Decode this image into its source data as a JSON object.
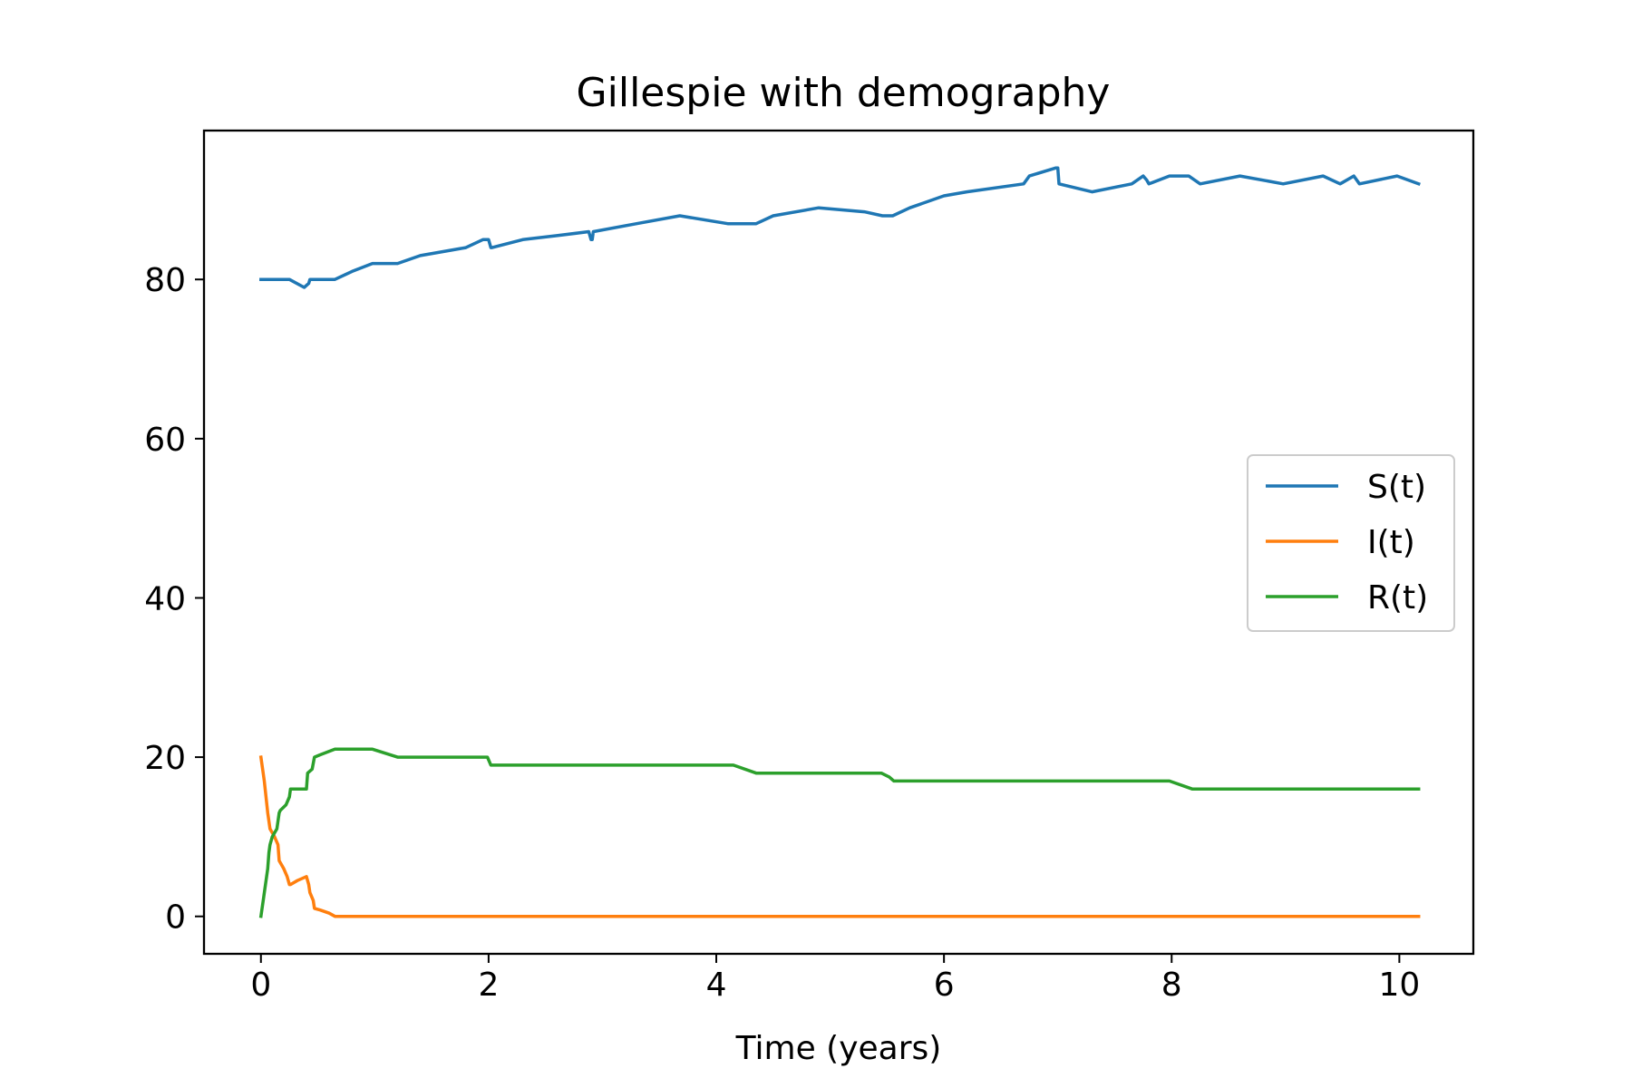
{
  "chart_data": {
    "type": "line",
    "title": "Gillespie with demography",
    "xlabel": "Time (years)",
    "ylabel": "",
    "xlim": [
      -0.5,
      10.65
    ],
    "ylim": [
      -4.7,
      98.7
    ],
    "xticks": [
      0,
      2,
      4,
      6,
      8,
      10
    ],
    "yticks": [
      0,
      20,
      40,
      60,
      80
    ],
    "grid": false,
    "legend_position": "center-right",
    "series": [
      {
        "name": "S(t)",
        "color": "#1f77b4",
        "x": [
          0,
          0.25,
          0.38,
          0.42,
          0.43,
          0.65,
          0.8,
          0.98,
          1.2,
          1.4,
          1.6,
          1.8,
          1.95,
          2.0,
          2.02,
          2.03,
          2.3,
          2.6,
          2.88,
          2.9,
          2.91,
          2.92,
          3.3,
          3.68,
          4.1,
          4.35,
          4.5,
          4.9,
          5.3,
          5.46,
          5.55,
          5.7,
          6.0,
          6.2,
          6.7,
          6.75,
          6.98,
          7.0,
          7.01,
          7.3,
          7.65,
          7.75,
          7.78,
          7.8,
          7.98,
          8.15,
          8.25,
          8.6,
          8.98,
          9.33,
          9.48,
          9.6,
          9.65,
          9.98,
          10.17
        ],
        "y": [
          80,
          80,
          79,
          79.5,
          80,
          80,
          81,
          82,
          82,
          83,
          83.5,
          84,
          85,
          85,
          84,
          84,
          85,
          85.5,
          86,
          85,
          85,
          86,
          87,
          88,
          87,
          87,
          88,
          89,
          88.5,
          88,
          88,
          89,
          90.5,
          91,
          92,
          93,
          94,
          94,
          92,
          91,
          92,
          93,
          92.5,
          92,
          93,
          93,
          92,
          93,
          92,
          93,
          92,
          93,
          92,
          93,
          92
        ]
      },
      {
        "name": "I(t)",
        "color": "#ff7f0e",
        "x": [
          0,
          0.03,
          0.06,
          0.08,
          0.12,
          0.15,
          0.16,
          0.2,
          0.23,
          0.25,
          0.26,
          0.32,
          0.4,
          0.42,
          0.43,
          0.46,
          0.47,
          0.52,
          0.6,
          0.65,
          10.17
        ],
        "y": [
          20,
          17,
          13,
          11,
          10,
          9,
          7,
          6,
          5,
          4,
          4,
          4.5,
          5,
          4,
          3,
          2,
          1,
          0.8,
          0.4,
          0,
          0
        ]
      },
      {
        "name": "R(t)",
        "color": "#2ca02c",
        "x": [
          0,
          0.02,
          0.04,
          0.06,
          0.07,
          0.08,
          0.1,
          0.14,
          0.16,
          0.17,
          0.22,
          0.25,
          0.26,
          0.4,
          0.41,
          0.45,
          0.47,
          0.52,
          0.65,
          0.98,
          1.2,
          1.96,
          1.99,
          2.02,
          4.15,
          4.35,
          5.45,
          5.52,
          5.56,
          7.98,
          8.18,
          10.17
        ],
        "y": [
          0,
          2,
          4,
          6,
          8,
          9,
          10,
          11,
          13,
          13.3,
          14,
          15,
          16,
          16,
          18,
          18.5,
          20,
          20.3,
          21,
          21,
          20,
          20,
          20,
          19,
          19,
          18,
          18,
          17.5,
          17,
          17,
          16,
          16
        ]
      }
    ]
  }
}
